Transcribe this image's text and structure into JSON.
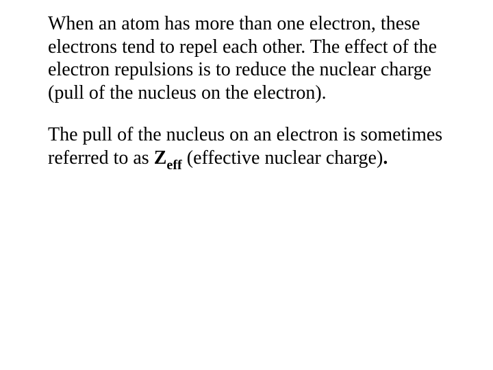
{
  "paragraphs": {
    "p1": {
      "text": "When an atom has more than one electron, these electrons tend to repel each other. The effect of the electron repulsions is to reduce the nuclear charge (pull of the nucleus on the electron)."
    },
    "p2": {
      "before_symbol": "The pull of the nucleus on an electron is sometimes referred to as ",
      "symbol_main": "Z",
      "symbol_sub": "eff",
      "after_symbol": " (effective nuclear charge)",
      "terminal": "."
    }
  },
  "style": {
    "font_family": "Times New Roman",
    "font_size_pt": 21,
    "text_color": "#000000",
    "background_color": "#ffffff"
  }
}
